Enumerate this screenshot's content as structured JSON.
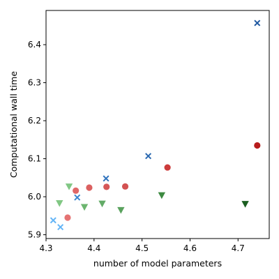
{
  "chart_data": {
    "type": "scatter",
    "xlabel": "number of model parameters",
    "ylabel": "Computational wall time",
    "xlim": [
      4.3,
      4.765
    ],
    "ylim": [
      5.89,
      6.49
    ],
    "xticks": [
      4.3,
      4.4,
      4.5,
      4.6,
      4.7
    ],
    "xtick_labels": [
      "4.3",
      "4.4",
      "4.5",
      "4.6",
      "4.7"
    ],
    "yticks": [
      5.9,
      6.0,
      6.1,
      6.2,
      6.3,
      6.4
    ],
    "ytick_labels": [
      "5.9",
      "6.0",
      "6.1",
      "6.2",
      "6.3",
      "6.4"
    ],
    "grid": false,
    "series": [
      {
        "marker": "x",
        "points": [
          {
            "x": 4.315,
            "y": 5.938,
            "color": "#64b5f6"
          },
          {
            "x": 4.33,
            "y": 5.92,
            "color": "#64b5f6"
          },
          {
            "x": 4.365,
            "y": 5.998,
            "color": "#3a86d1"
          },
          {
            "x": 4.425,
            "y": 6.048,
            "color": "#2f73bd"
          },
          {
            "x": 4.513,
            "y": 6.107,
            "color": "#2a68b0"
          },
          {
            "x": 4.74,
            "y": 6.457,
            "color": "#1d57a0"
          }
        ]
      },
      {
        "marker": "circle",
        "points": [
          {
            "x": 4.345,
            "y": 5.945,
            "color": "#e57373"
          },
          {
            "x": 4.362,
            "y": 6.016,
            "color": "#e06767"
          },
          {
            "x": 4.39,
            "y": 6.024,
            "color": "#db6060"
          },
          {
            "x": 4.426,
            "y": 6.026,
            "color": "#d65858"
          },
          {
            "x": 4.465,
            "y": 6.027,
            "color": "#d35252"
          },
          {
            "x": 4.553,
            "y": 6.077,
            "color": "#cc3b3b"
          },
          {
            "x": 4.74,
            "y": 6.135,
            "color": "#b71c1c"
          }
        ]
      },
      {
        "marker": "triangle-down",
        "points": [
          {
            "x": 4.328,
            "y": 5.982,
            "color": "#81c784"
          },
          {
            "x": 4.348,
            "y": 6.026,
            "color": "#81c784"
          },
          {
            "x": 4.38,
            "y": 5.972,
            "color": "#6cb56f"
          },
          {
            "x": 4.417,
            "y": 5.981,
            "color": "#63ab67"
          },
          {
            "x": 4.456,
            "y": 5.964,
            "color": "#5aa25e"
          },
          {
            "x": 4.541,
            "y": 6.003,
            "color": "#3d8a41"
          },
          {
            "x": 4.715,
            "y": 5.98,
            "color": "#1b5e20"
          }
        ]
      }
    ]
  }
}
